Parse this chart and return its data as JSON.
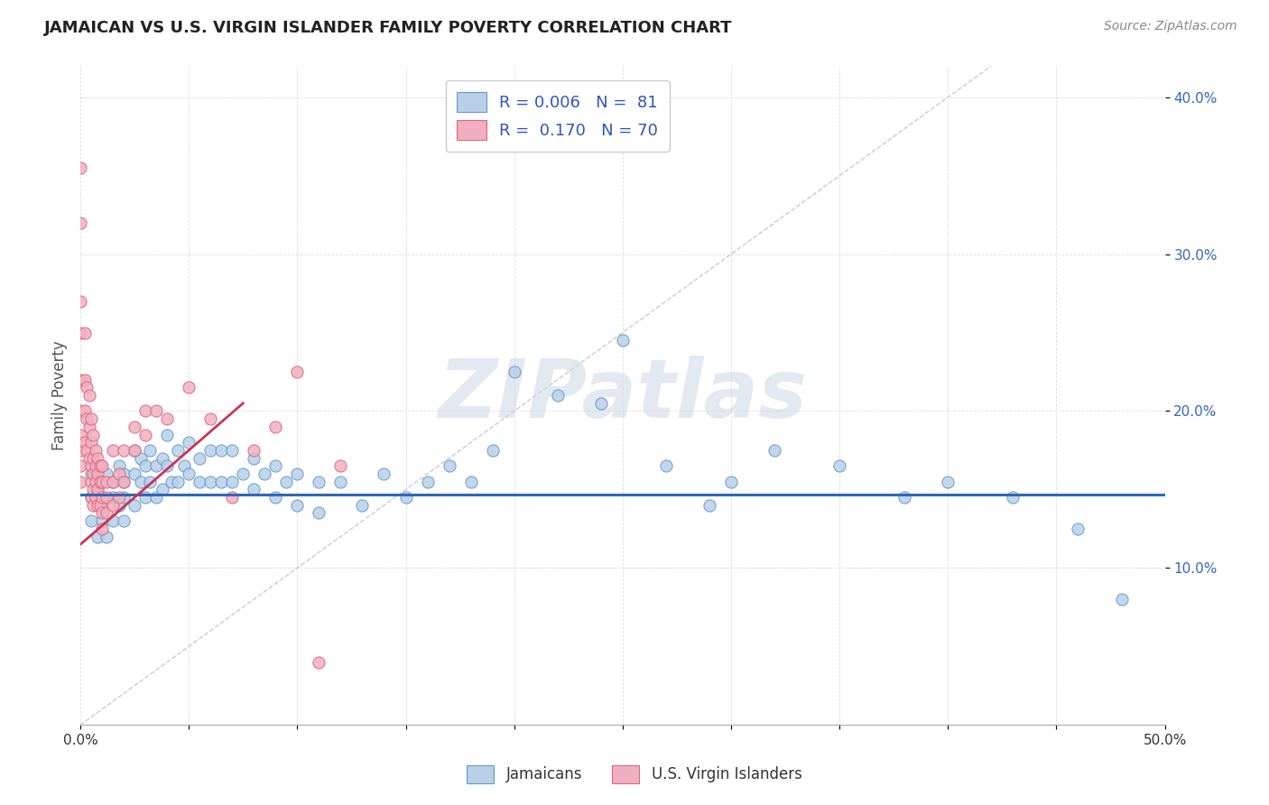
{
  "title": "JAMAICAN VS U.S. VIRGIN ISLANDER FAMILY POVERTY CORRELATION CHART",
  "source": "Source: ZipAtlas.com",
  "ylabel": "Family Poverty",
  "legend_blue_label": "R = 0.006   N =  81",
  "legend_pink_label": "R =  0.170   N = 70",
  "blue_fill": "#b8d0e8",
  "blue_edge": "#6699cc",
  "pink_fill": "#f0b0c0",
  "pink_edge": "#dd6680",
  "blue_line_color": "#3366bb",
  "pink_line_color": "#cc3355",
  "ref_line_color": "#cccccc",
  "title_color": "#222222",
  "legend_text_color": "#3355bb",
  "watermark": "ZIPatlas",
  "xlim": [
    0.0,
    0.5
  ],
  "ylim": [
    0.0,
    0.42
  ],
  "yticks": [
    0.1,
    0.2,
    0.3,
    0.4
  ],
  "ytick_labels": [
    "10.0%",
    "20.0%",
    "30.0%",
    "40.0%"
  ],
  "xticks": [
    0.0,
    0.05,
    0.1,
    0.15,
    0.2,
    0.25,
    0.3,
    0.35,
    0.4,
    0.45,
    0.5
  ],
  "xtick_labels": [
    "0.0%",
    "",
    "",
    "",
    "",
    "",
    "",
    "",
    "",
    "",
    "50.0%"
  ],
  "blue_x": [
    0.005,
    0.005,
    0.005,
    0.008,
    0.008,
    0.01,
    0.01,
    0.01,
    0.012,
    0.012,
    0.015,
    0.015,
    0.015,
    0.018,
    0.018,
    0.02,
    0.02,
    0.02,
    0.02,
    0.025,
    0.025,
    0.025,
    0.028,
    0.028,
    0.03,
    0.03,
    0.032,
    0.032,
    0.035,
    0.035,
    0.038,
    0.038,
    0.04,
    0.04,
    0.042,
    0.045,
    0.045,
    0.048,
    0.05,
    0.05,
    0.055,
    0.055,
    0.06,
    0.06,
    0.065,
    0.065,
    0.07,
    0.07,
    0.075,
    0.08,
    0.08,
    0.085,
    0.09,
    0.09,
    0.095,
    0.1,
    0.1,
    0.11,
    0.11,
    0.12,
    0.13,
    0.14,
    0.15,
    0.16,
    0.17,
    0.18,
    0.19,
    0.2,
    0.22,
    0.24,
    0.25,
    0.27,
    0.29,
    0.3,
    0.32,
    0.35,
    0.38,
    0.4,
    0.43,
    0.46,
    0.48
  ],
  "blue_y": [
    0.145,
    0.13,
    0.16,
    0.15,
    0.12,
    0.155,
    0.14,
    0.13,
    0.16,
    0.12,
    0.155,
    0.145,
    0.13,
    0.165,
    0.14,
    0.16,
    0.155,
    0.145,
    0.13,
    0.175,
    0.16,
    0.14,
    0.17,
    0.155,
    0.165,
    0.145,
    0.175,
    0.155,
    0.165,
    0.145,
    0.17,
    0.15,
    0.185,
    0.165,
    0.155,
    0.175,
    0.155,
    0.165,
    0.18,
    0.16,
    0.17,
    0.155,
    0.175,
    0.155,
    0.175,
    0.155,
    0.175,
    0.155,
    0.16,
    0.17,
    0.15,
    0.16,
    0.165,
    0.145,
    0.155,
    0.16,
    0.14,
    0.155,
    0.135,
    0.155,
    0.14,
    0.16,
    0.145,
    0.155,
    0.165,
    0.155,
    0.175,
    0.225,
    0.21,
    0.205,
    0.245,
    0.165,
    0.14,
    0.155,
    0.175,
    0.165,
    0.145,
    0.155,
    0.145,
    0.125,
    0.08
  ],
  "pink_x": [
    0.0,
    0.0,
    0.0,
    0.0,
    0.0,
    0.0,
    0.0,
    0.0,
    0.0,
    0.0,
    0.002,
    0.002,
    0.002,
    0.002,
    0.003,
    0.003,
    0.003,
    0.004,
    0.004,
    0.004,
    0.005,
    0.005,
    0.005,
    0.005,
    0.005,
    0.006,
    0.006,
    0.006,
    0.006,
    0.006,
    0.007,
    0.007,
    0.007,
    0.007,
    0.008,
    0.008,
    0.008,
    0.008,
    0.009,
    0.009,
    0.009,
    0.01,
    0.01,
    0.01,
    0.01,
    0.01,
    0.012,
    0.012,
    0.012,
    0.015,
    0.015,
    0.015,
    0.018,
    0.018,
    0.02,
    0.02,
    0.025,
    0.025,
    0.03,
    0.03,
    0.035,
    0.04,
    0.05,
    0.06,
    0.07,
    0.08,
    0.09,
    0.1,
    0.11,
    0.12
  ],
  "pink_y": [
    0.355,
    0.32,
    0.27,
    0.25,
    0.22,
    0.2,
    0.185,
    0.175,
    0.165,
    0.155,
    0.25,
    0.22,
    0.2,
    0.18,
    0.215,
    0.195,
    0.175,
    0.21,
    0.19,
    0.17,
    0.195,
    0.18,
    0.165,
    0.155,
    0.145,
    0.185,
    0.17,
    0.16,
    0.15,
    0.14,
    0.175,
    0.165,
    0.155,
    0.145,
    0.17,
    0.16,
    0.15,
    0.14,
    0.165,
    0.155,
    0.14,
    0.165,
    0.155,
    0.145,
    0.135,
    0.125,
    0.155,
    0.145,
    0.135,
    0.175,
    0.155,
    0.14,
    0.16,
    0.145,
    0.175,
    0.155,
    0.19,
    0.175,
    0.2,
    0.185,
    0.2,
    0.195,
    0.215,
    0.195,
    0.145,
    0.175,
    0.19,
    0.225,
    0.04,
    0.165
  ],
  "blue_trend_y_intercept": 0.147,
  "blue_trend_slope": 0.0,
  "pink_trend_x0": 0.0,
  "pink_trend_y0": 0.115,
  "pink_trend_x1": 0.075,
  "pink_trend_y1": 0.205
}
